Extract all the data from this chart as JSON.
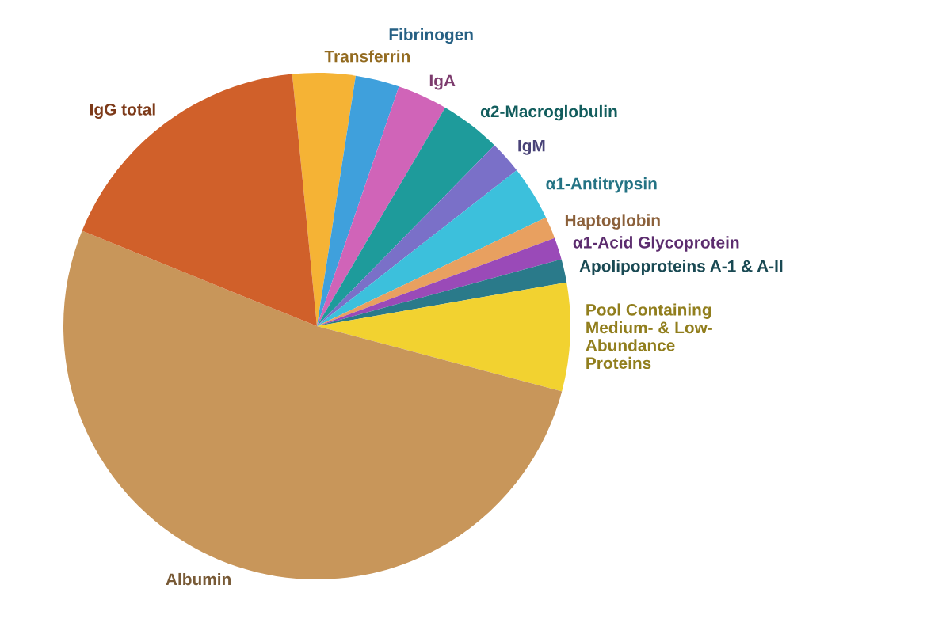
{
  "chart_data": {
    "type": "pie",
    "categories": [
      "Transferrin",
      "Fibrinogen",
      "IgA",
      "α2-Macroglobulin",
      "IgM",
      "α1-Antitrypsin",
      "Haptoglobin",
      "α1-Acid Glycoprotein",
      "Apolipoproteins A-1 & A-II",
      "Pool Containing\nMedium- & Low-\nAbundance\nProteins",
      "Albumin",
      "IgG total"
    ],
    "values": [
      4,
      2.8,
      3.2,
      3.9,
      2.1,
      3.5,
      1.4,
      1.4,
      1.5,
      6.9,
      52,
      17.3
    ],
    "colors": [
      "#f5b335",
      "#3fa0dc",
      "#d064b8",
      "#1e9b9b",
      "#7a70c8",
      "#3cc0dc",
      "#e8a060",
      "#9a4ab8",
      "#2a7a8a",
      "#f2d230",
      "#c8965a",
      "#d0602a"
    ]
  }
}
